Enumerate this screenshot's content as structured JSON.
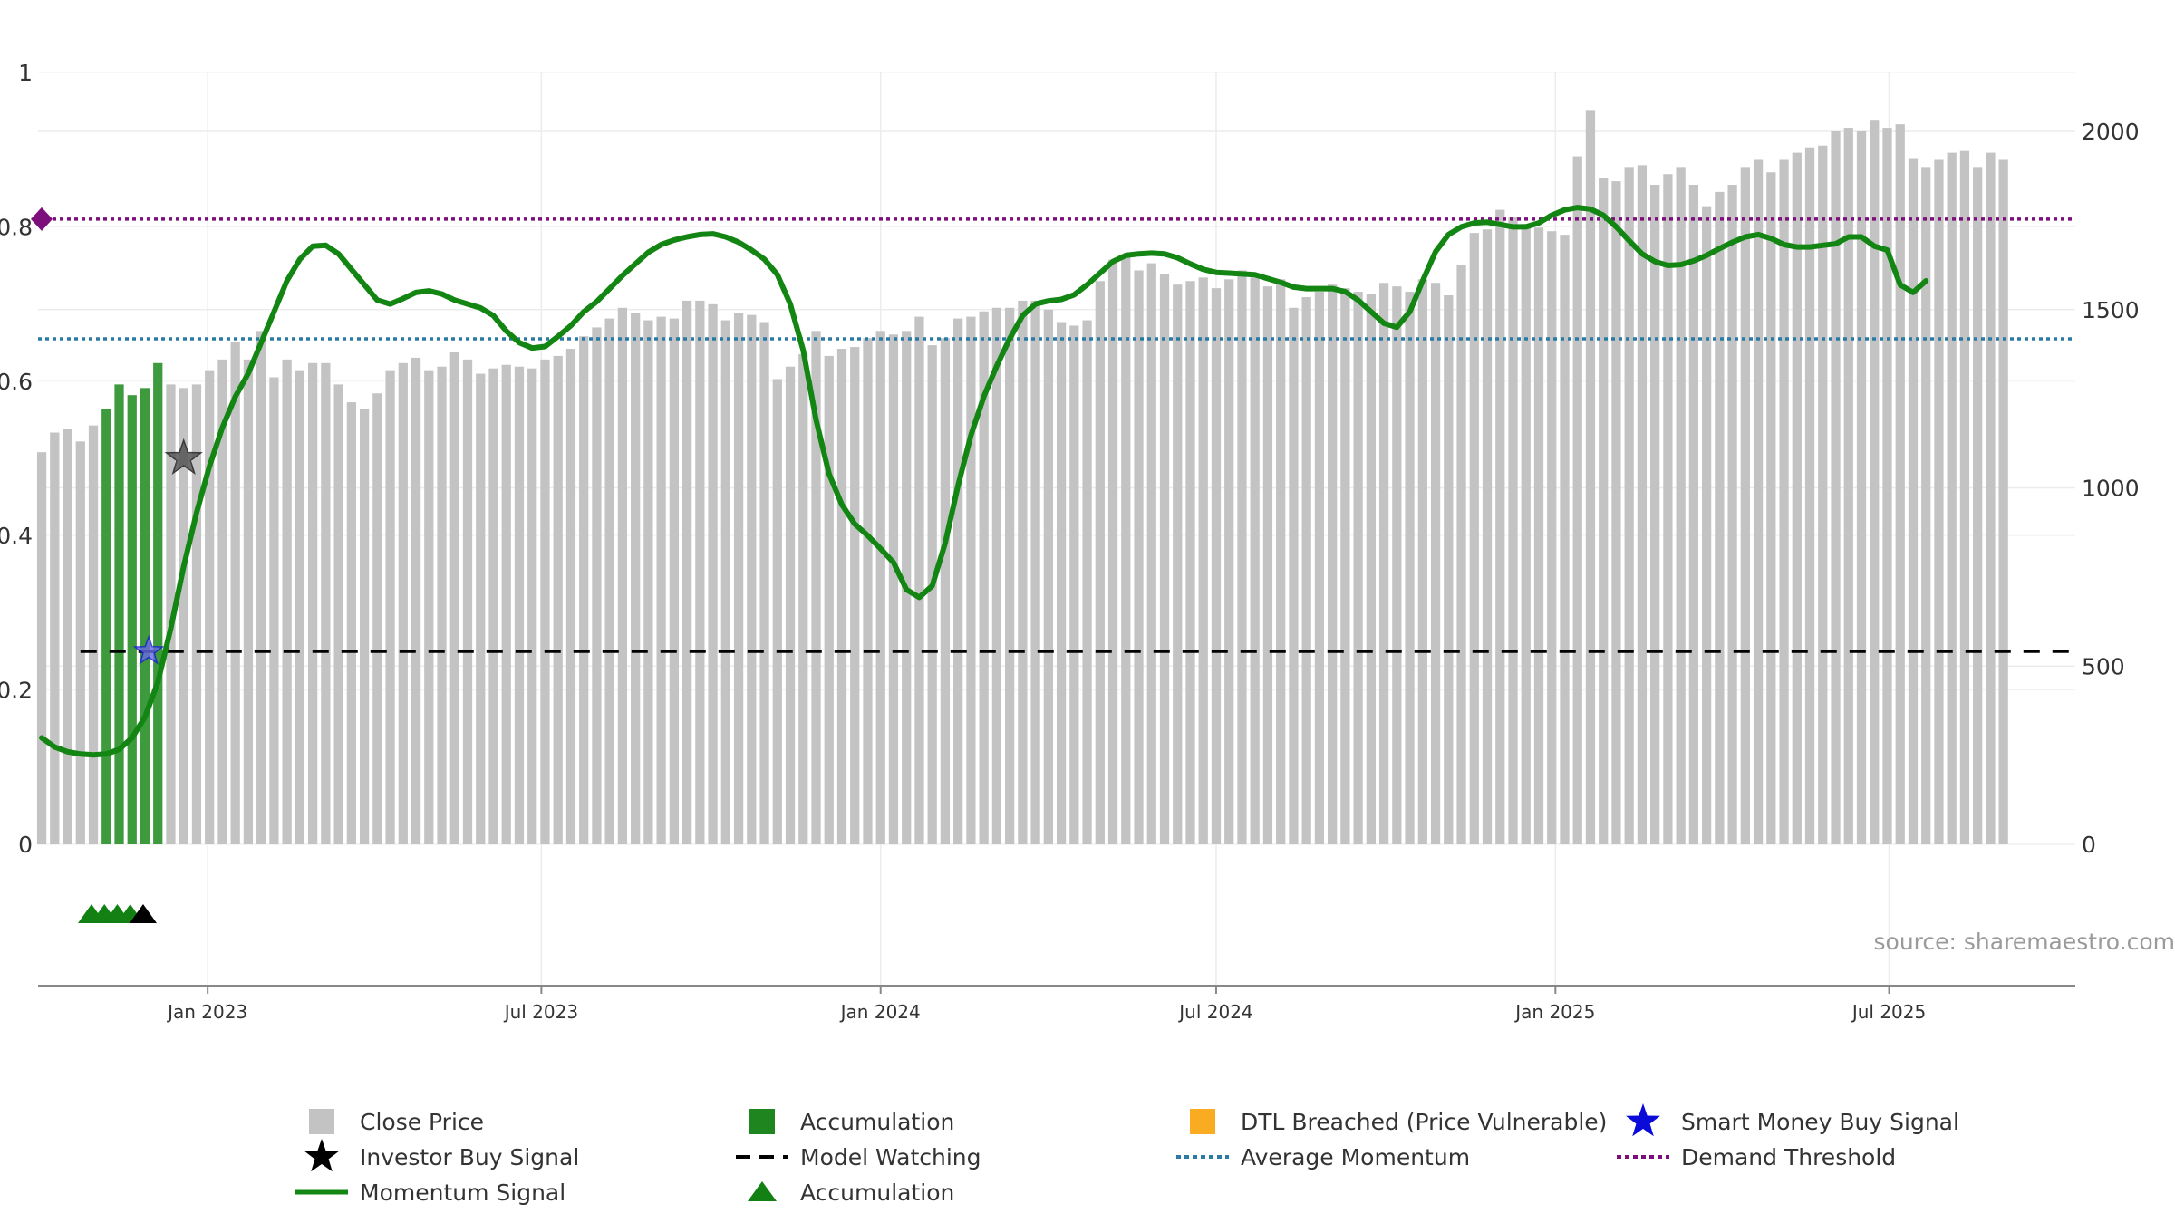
{
  "chart_data": {
    "type": "bar",
    "source_text": "source: sharemaestro.com",
    "y_left": {
      "ylim": [
        0,
        1
      ],
      "ticks": [
        "0",
        "0.2",
        "0.4",
        "0.6",
        "0.8",
        "1"
      ]
    },
    "y_right": {
      "ylim": [
        0,
        2000
      ],
      "ticks": [
        "0",
        "500",
        "1000",
        "1500",
        "2000"
      ]
    },
    "x_axis": {
      "start": "2022-10-01",
      "end": "2025-10-10",
      "ticks": [
        {
          "date": "2023-01-01",
          "label": "Jan 2023"
        },
        {
          "date": "2023-07-01",
          "label": "Jul 2023"
        },
        {
          "date": "2024-01-01",
          "label": "Jan 2024"
        },
        {
          "date": "2024-07-01",
          "label": "Jul 2024"
        },
        {
          "date": "2025-01-01",
          "label": "Jan 2025"
        },
        {
          "date": "2025-07-01",
          "label": "Jul 2025"
        }
      ]
    },
    "close_price_series": {
      "first_week": "2022-10-03",
      "state_codes": "g = Close Price, a = Accumulation, o = DTL Breached (Price Vulnerable)",
      "state": "gggggaaaaaggggggggggggggggggggggggggggggggggggggggggggggggggggggggggggggggggggggggggggggggggggggggggggggggggggggggggggggggggggggggggggggggggggggggggggggggggggggggggggggooooooooooooooooooooooooooooooooooooo",
      "values": [
        1100,
        1155,
        1165,
        1130,
        1175,
        1220,
        1290,
        1260,
        1280,
        1350,
        1290,
        1280,
        1290,
        1330,
        1360,
        1410,
        1360,
        1440,
        1310,
        1360,
        1330,
        1350,
        1350,
        1290,
        1240,
        1220,
        1265,
        1330,
        1350,
        1365,
        1330,
        1340,
        1380,
        1360,
        1320,
        1335,
        1345,
        1340,
        1335,
        1360,
        1370,
        1390,
        1425,
        1450,
        1475,
        1505,
        1490,
        1470,
        1480,
        1475,
        1525,
        1525,
        1515,
        1470,
        1490,
        1485,
        1465,
        1305,
        1340,
        1375,
        1440,
        1370,
        1390,
        1395,
        1420,
        1440,
        1430,
        1440,
        1480,
        1400,
        1420,
        1475,
        1480,
        1495,
        1505,
        1505,
        1525,
        1525,
        1500,
        1465,
        1455,
        1470,
        1580,
        1640,
        1655,
        1610,
        1630,
        1600,
        1570,
        1580,
        1590,
        1560,
        1585,
        1610,
        1590,
        1565,
        1585,
        1505,
        1535,
        1550,
        1570,
        1560,
        1550,
        1545,
        1575,
        1565,
        1550,
        1585,
        1575,
        1540,
        1625,
        1715,
        1725,
        1780,
        1760,
        1740,
        1730,
        1720,
        1710,
        1930,
        2060,
        1870,
        1860,
        1900,
        1905,
        1850,
        1880,
        1900,
        1850,
        1790,
        1830,
        1850,
        1900,
        1920,
        1885,
        1920,
        1940,
        1955,
        1960,
        2000,
        2010,
        2000,
        2030,
        2010,
        2020,
        1925,
        1900,
        1920,
        1940,
        1945,
        1900,
        1940,
        1920
      ]
    },
    "momentum_signal": {
      "first_week": "2022-10-03",
      "values": [
        0.138,
        0.126,
        0.12,
        0.117,
        0.116,
        0.117,
        0.123,
        0.138,
        0.165,
        0.21,
        0.28,
        0.36,
        0.43,
        0.49,
        0.54,
        0.58,
        0.61,
        0.65,
        0.69,
        0.73,
        0.758,
        0.775,
        0.776,
        0.765,
        0.745,
        0.725,
        0.705,
        0.7,
        0.707,
        0.715,
        0.717,
        0.713,
        0.705,
        0.7,
        0.695,
        0.685,
        0.665,
        0.65,
        0.643,
        0.645,
        0.658,
        0.672,
        0.69,
        0.703,
        0.72,
        0.737,
        0.752,
        0.767,
        0.777,
        0.783,
        0.787,
        0.79,
        0.791,
        0.787,
        0.78,
        0.77,
        0.758,
        0.738,
        0.7,
        0.64,
        0.55,
        0.48,
        0.44,
        0.415,
        0.4,
        0.383,
        0.365,
        0.33,
        0.32,
        0.335,
        0.39,
        0.465,
        0.53,
        0.58,
        0.62,
        0.655,
        0.685,
        0.7,
        0.704,
        0.706,
        0.712,
        0.725,
        0.74,
        0.755,
        0.763,
        0.765,
        0.766,
        0.765,
        0.76,
        0.752,
        0.745,
        0.741,
        0.74,
        0.739,
        0.738,
        0.733,
        0.728,
        0.722,
        0.72,
        0.72,
        0.72,
        0.716,
        0.705,
        0.69,
        0.675,
        0.67,
        0.69,
        0.73,
        0.768,
        0.79,
        0.8,
        0.805,
        0.806,
        0.803,
        0.8,
        0.8,
        0.805,
        0.815,
        0.822,
        0.825,
        0.823,
        0.815,
        0.8,
        0.782,
        0.765,
        0.755,
        0.75,
        0.751,
        0.756,
        0.763,
        0.772,
        0.78,
        0.787,
        0.79,
        0.785,
        0.777,
        0.774,
        0.774,
        0.776,
        0.778,
        0.787,
        0.787,
        0.775,
        0.77,
        0.725,
        0.715,
        0.73
      ]
    },
    "average_momentum": 0.655,
    "demand_threshold": 0.81,
    "model_watching": {
      "value": 0.25,
      "start": "2022-10-24"
    },
    "investor_buy_signal": [
      {
        "date": "2022-12-19",
        "value": 0.5
      }
    ],
    "smart_money_buy_signal": [
      {
        "date": "2022-11-30",
        "value": 0.25
      }
    ],
    "accumulation_markers": [
      {
        "date": "2022-10-30",
        "color": "green"
      },
      {
        "date": "2022-11-06",
        "color": "green"
      },
      {
        "date": "2022-11-13",
        "color": "green"
      },
      {
        "date": "2022-11-20",
        "color": "green"
      },
      {
        "date": "2022-11-27",
        "color": "black"
      }
    ],
    "colors": {
      "close_price": "#c3c3c3",
      "accumulation": "#3d9a3d",
      "dtl": "#ffd690",
      "momentum": "#138513",
      "average_momentum": "#2a7aa3",
      "demand_threshold": "#7d0f7d",
      "model_watching": "#000000",
      "smart_money": "#1a1ad8",
      "investor": "#000000"
    },
    "legend": [
      {
        "label": "Close Price",
        "icon": "gray-square"
      },
      {
        "label": "Accumulation",
        "icon": "green-square"
      },
      {
        "label": "DTL Breached (Price Vulnerable)",
        "icon": "orange-square"
      },
      {
        "label": "Smart Money Buy Signal",
        "icon": "blue-star"
      },
      {
        "label": "Investor Buy Signal",
        "icon": "black-star"
      },
      {
        "label": "Model Watching",
        "icon": "black-dash"
      },
      {
        "label": "Average Momentum",
        "icon": "blue-dots"
      },
      {
        "label": "Demand Threshold",
        "icon": "purple-dots"
      },
      {
        "label": "Momentum Signal",
        "icon": "green-line"
      },
      {
        "label": "Accumulation",
        "icon": "green-triangle"
      }
    ]
  }
}
